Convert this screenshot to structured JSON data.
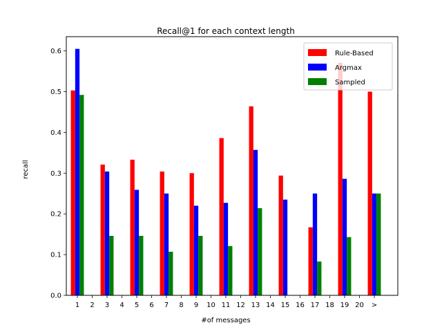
{
  "chart_data": {
    "type": "bar",
    "title": "Recall@1 for each context length",
    "xlabel": "#of messages",
    "ylabel": "recall",
    "categories": [
      "1",
      "2",
      "3",
      "4",
      "5",
      "6",
      "7",
      "8",
      "9",
      "10",
      "11",
      "12",
      "13",
      "14",
      "15",
      "16",
      "17",
      "18",
      "19",
      "20",
      ">"
    ],
    "ylim": [
      0,
      0.635
    ],
    "yticks": [
      0.0,
      0.1,
      0.2,
      0.3,
      0.4,
      0.5,
      0.6
    ],
    "ytick_labels": [
      "0.0",
      "0.1",
      "0.2",
      "0.3",
      "0.4",
      "0.5",
      "0.6"
    ],
    "grid": false,
    "legend_position": "top-right",
    "series": [
      {
        "name": "Rule-Based",
        "color": "#ff0000",
        "values": [
          0.503,
          null,
          0.321,
          null,
          0.333,
          null,
          0.304,
          null,
          0.3,
          null,
          0.386,
          null,
          0.464,
          null,
          0.294,
          null,
          0.167,
          null,
          0.571,
          null,
          0.5
        ]
      },
      {
        "name": "Argmax",
        "color": "#0000ff",
        "values": [
          0.605,
          null,
          0.304,
          null,
          0.259,
          null,
          0.25,
          null,
          0.22,
          null,
          0.227,
          null,
          0.357,
          null,
          0.235,
          null,
          0.25,
          null,
          0.286,
          null,
          0.25
        ]
      },
      {
        "name": "Sampled",
        "color": "#008000",
        "values": [
          0.492,
          null,
          0.146,
          null,
          0.146,
          null,
          0.107,
          null,
          0.146,
          null,
          0.121,
          null,
          0.214,
          null,
          null,
          null,
          0.083,
          null,
          0.143,
          null,
          0.25
        ]
      }
    ]
  }
}
